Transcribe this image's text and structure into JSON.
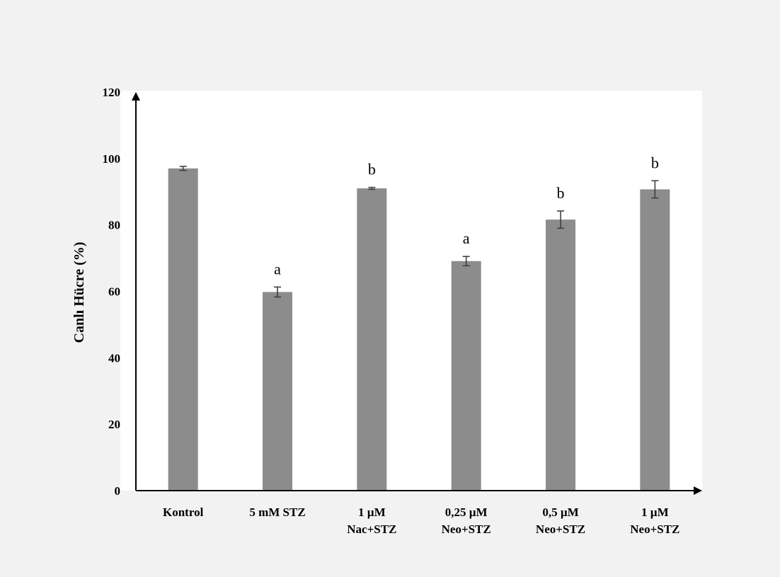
{
  "chart_data": {
    "type": "bar",
    "title": "",
    "xlabel": "",
    "ylabel": "Canlı Hücre (%)",
    "ylim": [
      0,
      120
    ],
    "yticks": [
      0,
      20,
      40,
      60,
      80,
      100,
      120
    ],
    "grid": false,
    "categories": [
      [
        "Kontrol"
      ],
      [
        "5 mM STZ"
      ],
      [
        "1 µM",
        "Nac+STZ"
      ],
      [
        "0,25 µM",
        "Neo+STZ"
      ],
      [
        "0,5 µM",
        "Neo+STZ"
      ],
      [
        "1 µM",
        "Neo+STZ"
      ]
    ],
    "series": [
      {
        "values": [
          97.0,
          59.8,
          91.0,
          69.1,
          81.6,
          90.7
        ],
        "errors": [
          0.6,
          1.5,
          0.3,
          1.4,
          2.6,
          2.6
        ]
      }
    ],
    "annotations": [
      "",
      "a",
      "b",
      "a",
      "b",
      "b"
    ],
    "colors": {
      "bar": "#8c8c8c",
      "axis": "#000000",
      "error": "#3f3f3f",
      "plot_bg": "#ffffff",
      "page_bg": "#f2f2f2"
    }
  }
}
